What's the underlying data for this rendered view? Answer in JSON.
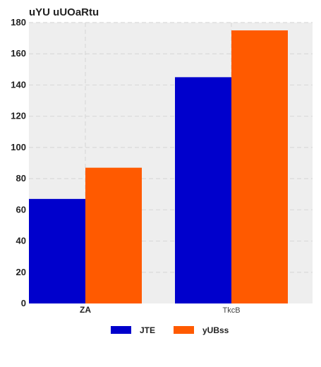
{
  "chart_data": {
    "type": "bar",
    "title": "uYU uUOaRtu",
    "categories": [
      "ZA",
      "TkcB"
    ],
    "series": [
      {
        "name": "JTE",
        "values": [
          67,
          145
        ],
        "color": "#0000cc"
      },
      {
        "name": "yUBss",
        "values": [
          87,
          175
        ],
        "color": "#ff5a00"
      }
    ],
    "ylim": [
      0,
      180
    ],
    "yticks": [
      0,
      20,
      40,
      60,
      80,
      100,
      120,
      140,
      160,
      180
    ],
    "grid": true,
    "legend": "bottom",
    "background": "#eeeeee"
  }
}
